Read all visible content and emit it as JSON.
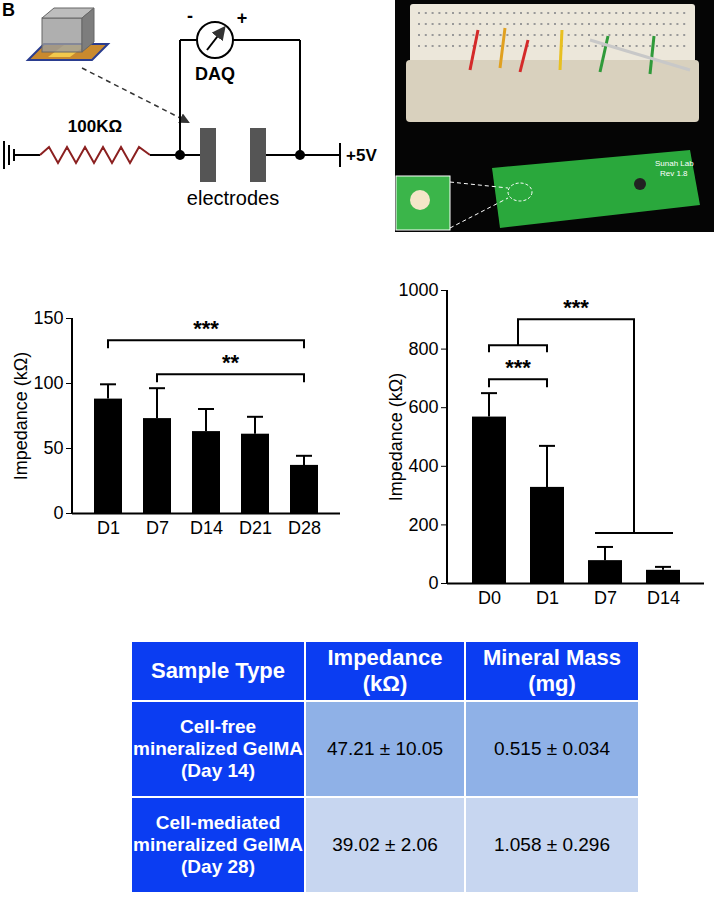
{
  "panel_label": "B",
  "diagram": {
    "resistor": "100KΩ",
    "meter": "DAQ",
    "meter_minus": "-",
    "meter_plus": "+",
    "electrodes": "electrodes",
    "supply": "+5V"
  },
  "photo": {
    "board_label": "Sunah Lab",
    "board_revision": "Rev 1.8"
  },
  "chart_data": [
    {
      "type": "bar",
      "categories": [
        "D1",
        "D7",
        "D14",
        "D21",
        "D28"
      ],
      "values": [
        88,
        73,
        63,
        61,
        37
      ],
      "errors": [
        11,
        23,
        17,
        13,
        7
      ],
      "color": "#000000",
      "ylabel": "Impedance (kΩ)",
      "ylim": [
        0,
        150
      ],
      "yticks": [
        0,
        50,
        100,
        150
      ],
      "significance": [
        {
          "from": "D1",
          "to": "D28",
          "label": "***"
        },
        {
          "from": "D7",
          "to": "D28",
          "label": "**"
        }
      ]
    },
    {
      "type": "bar",
      "categories": [
        "D0",
        "D1",
        "D7",
        "D14"
      ],
      "values": [
        568,
        328,
        78,
        45
      ],
      "errors": [
        80,
        140,
        45,
        10
      ],
      "color": "#000000",
      "ylabel": "Impedance (kΩ)",
      "ylim": [
        0,
        1000
      ],
      "yticks": [
        0,
        200,
        400,
        600,
        800,
        1000
      ],
      "significance": [
        {
          "from": [
            "D0",
            "D1"
          ],
          "to": [
            "D7",
            "D14"
          ],
          "label": "***"
        },
        {
          "from": "D0",
          "to": "D1",
          "label": "***"
        }
      ]
    }
  ],
  "table": {
    "header": [
      "Sample Type",
      "Impedance (kΩ)",
      "Mineral Mass (mg)"
    ],
    "rows": [
      [
        "Cell-free mineralized GelMA (Day 14)",
        "47.21 ± 10.05",
        "0.515 ± 0.034"
      ],
      [
        "Cell-mediated mineralized GelMA (Day 28)",
        "39.02 ± 2.06",
        "1.058 ± 0.296"
      ]
    ]
  }
}
